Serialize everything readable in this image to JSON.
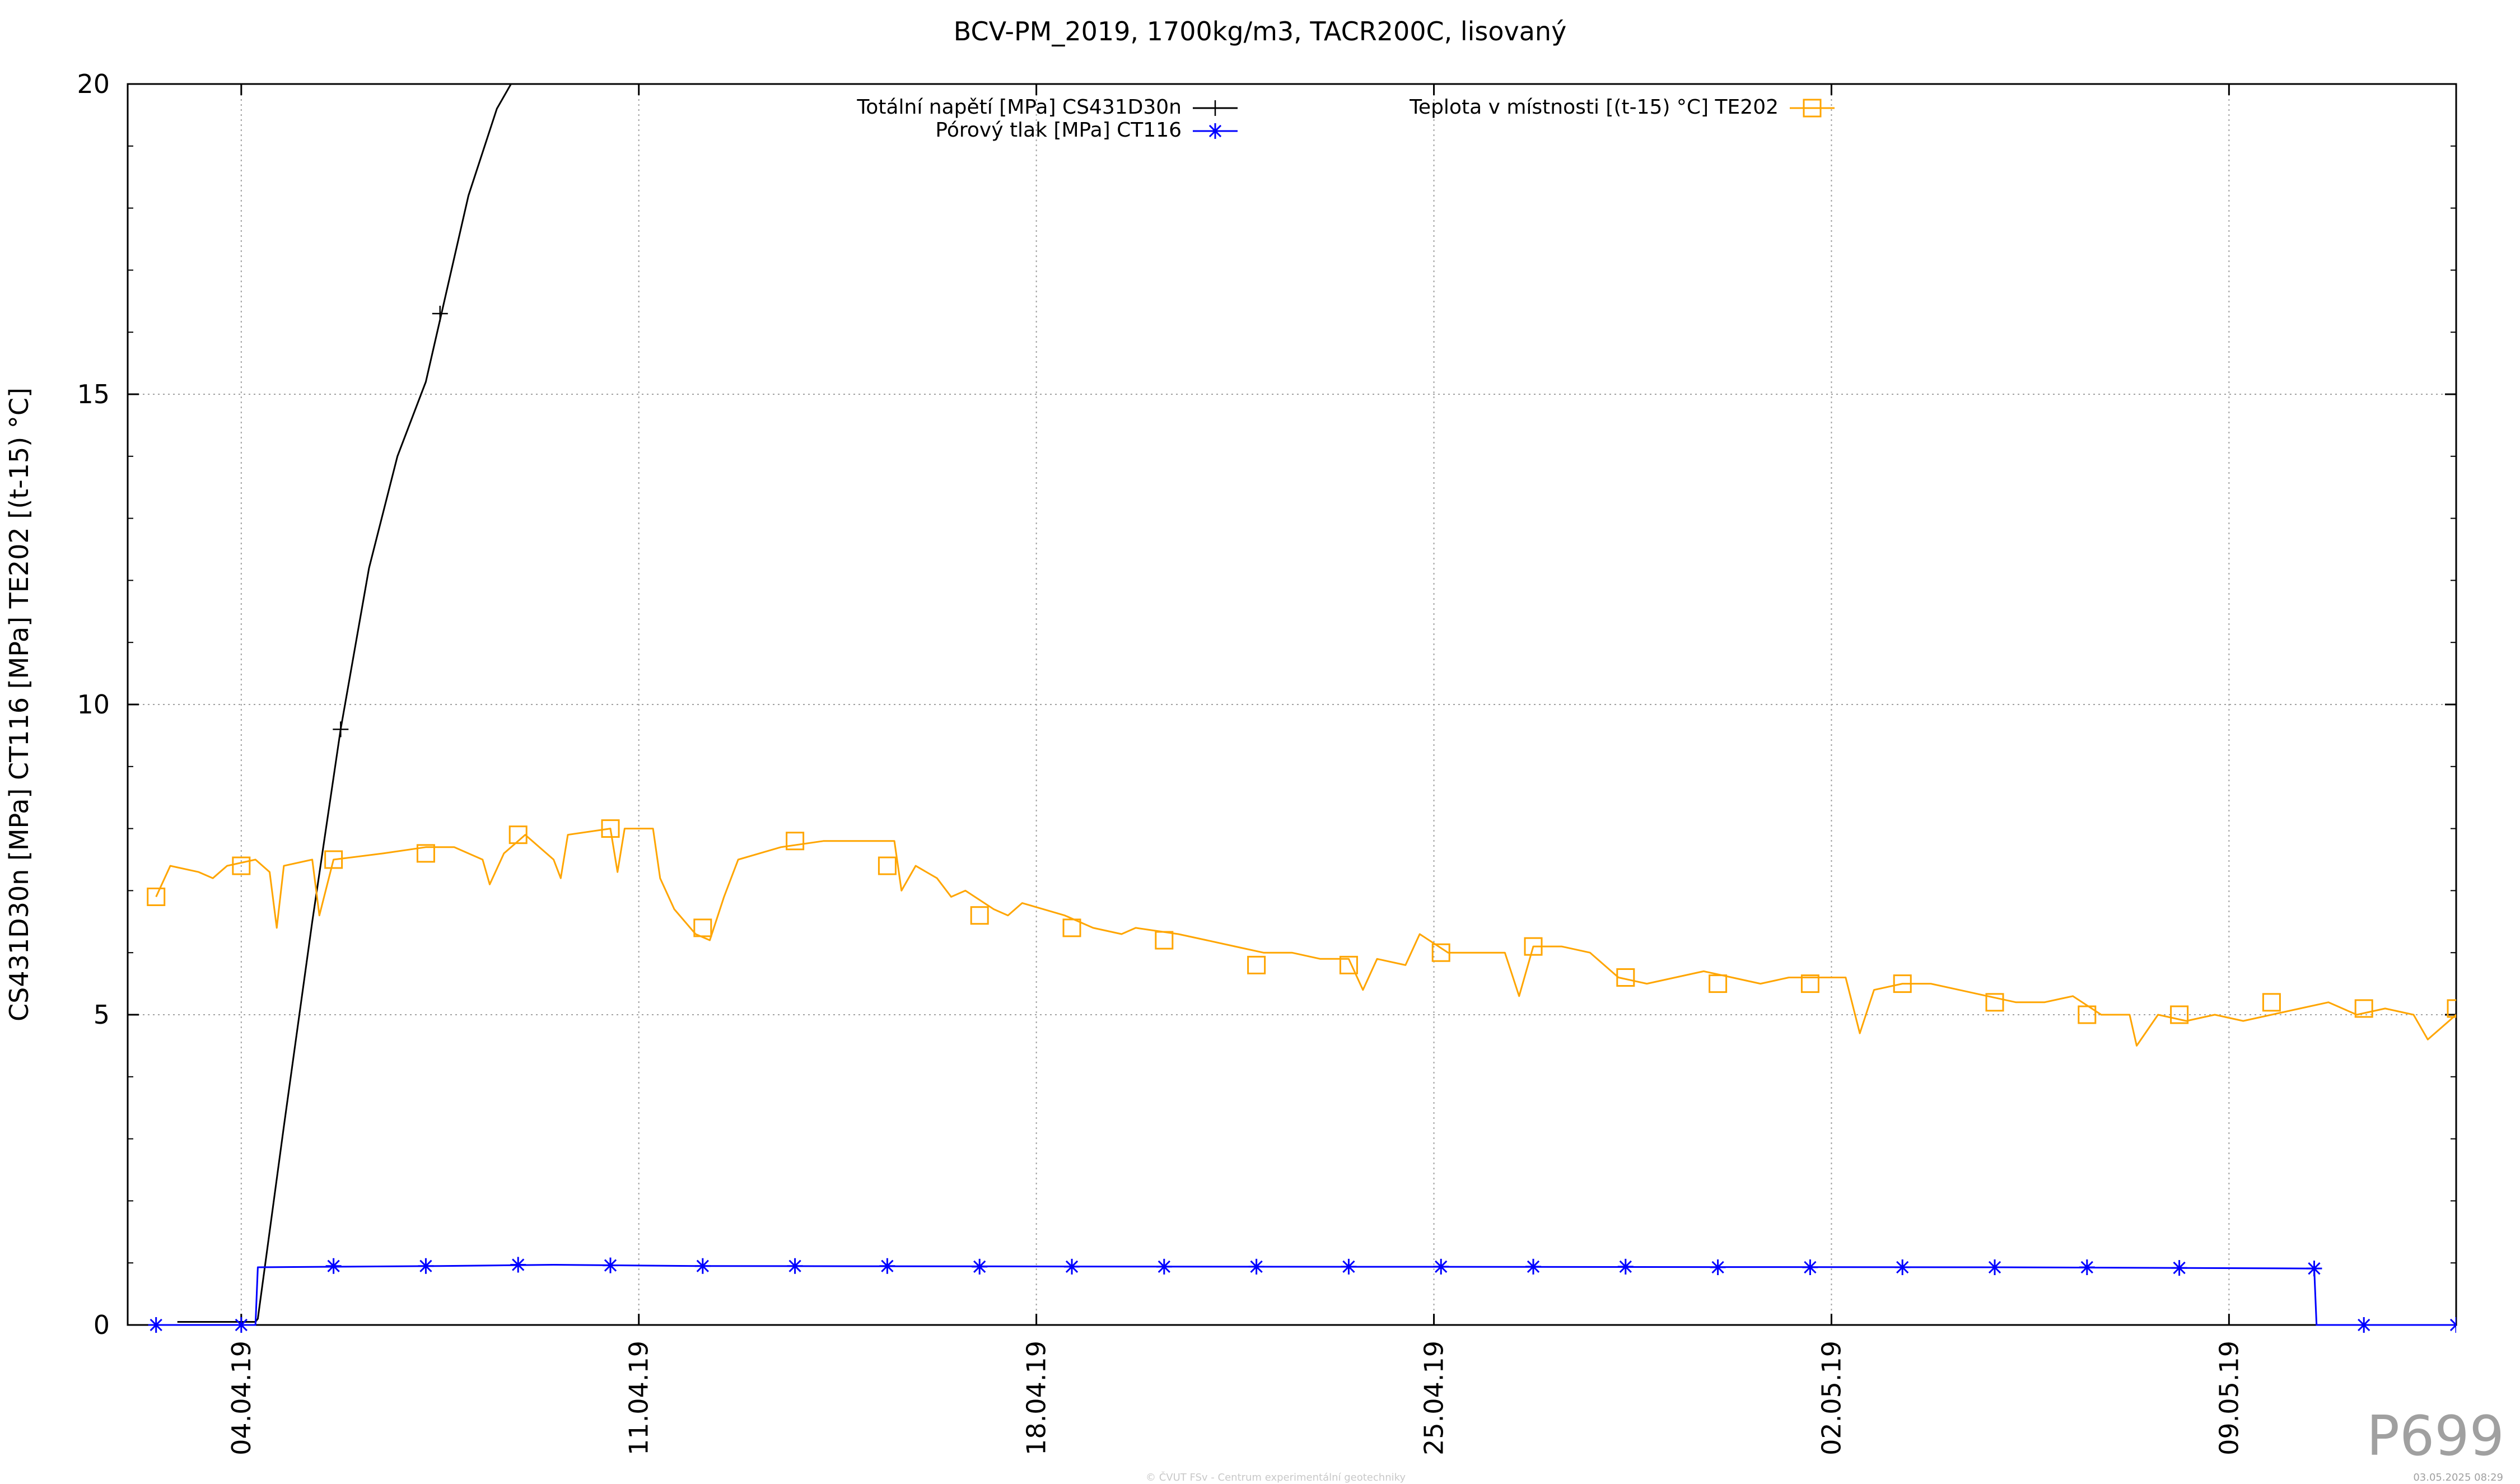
{
  "chart_data": {
    "type": "line",
    "title": "BCV-PM_2019, 1700kg/m3, TACR200C, lisovaný",
    "ylabel": "CS431D30n [MPa] CT116 [MPa] TE202 [(t-15) °C]",
    "xlabel": "",
    "ylim": [
      0,
      20
    ],
    "xlim": [
      "2019-04-02",
      "2019-05-13"
    ],
    "y_ticks": [
      "0",
      "5",
      "10",
      "15",
      "20"
    ],
    "x_ticks": [
      {
        "date": "2019-04-04",
        "label": "04.04.19"
      },
      {
        "date": "2019-04-11",
        "label": "11.04.19"
      },
      {
        "date": "2019-04-18",
        "label": "18.04.19"
      },
      {
        "date": "2019-04-25",
        "label": "25.04.19"
      },
      {
        "date": "2019-05-02",
        "label": "02.05.19"
      },
      {
        "date": "2019-05-09",
        "label": "09.05.19"
      }
    ],
    "grid": true,
    "legend_position": "top",
    "series": [
      {
        "name": "Totální napětí [MPa] CS431D30n",
        "color": "#000000",
        "marker": "plus",
        "points": [
          [
            "2019-04-02 21:00",
            0.05
          ],
          [
            "2019-04-03 12:00",
            0.05
          ],
          [
            "2019-04-04 06:00",
            0.05
          ],
          [
            "2019-04-04 07:00",
            0.1
          ],
          [
            "2019-04-04 18:00",
            3.2
          ],
          [
            "2019-04-05 06:00",
            6.5
          ],
          [
            "2019-04-05 18:00",
            9.6
          ],
          [
            "2019-04-06 06:00",
            12.2
          ],
          [
            "2019-04-06 18:00",
            14.0
          ],
          [
            "2019-04-07 06:00",
            15.2
          ],
          [
            "2019-04-07 12:00",
            16.2
          ],
          [
            "2019-04-08 00:00",
            18.2
          ],
          [
            "2019-04-08 12:00",
            19.6
          ],
          [
            "2019-04-08 18:00",
            20.0
          ]
        ],
        "marker_points": [
          [
            "2019-04-05 18:00",
            9.6
          ],
          [
            "2019-04-07 12:00",
            16.3
          ]
        ]
      },
      {
        "name": "Pórový tlak [MPa] CT116",
        "color": "#0000ff",
        "marker": "asterisk",
        "points": [
          [
            "2019-04-02 12:00",
            0.0
          ],
          [
            "2019-04-04 06:00",
            0.0
          ],
          [
            "2019-04-04 07:00",
            0.93
          ],
          [
            "2019-04-07 12:00",
            0.95
          ],
          [
            "2019-04-09 12:00",
            0.97
          ],
          [
            "2019-04-12 00:00",
            0.95
          ],
          [
            "2019-04-20 00:00",
            0.94
          ],
          [
            "2019-05-05 00:00",
            0.93
          ],
          [
            "2019-05-10 12:00",
            0.91
          ],
          [
            "2019-05-10 13:00",
            0.0
          ],
          [
            "2019-05-13 00:00",
            0.0
          ]
        ],
        "marker_points": [
          [
            "2019-04-02 12:00",
            0.0
          ],
          [
            "2019-04-04 00:00",
            0.0
          ],
          [
            "2019-04-05 15:00",
            0.95
          ],
          [
            "2019-04-07 06:00",
            0.95
          ],
          [
            "2019-04-08 21:00",
            0.97
          ],
          [
            "2019-04-10 12:00",
            0.96
          ],
          [
            "2019-04-12 03:00",
            0.95
          ],
          [
            "2019-04-13 18:00",
            0.95
          ],
          [
            "2019-04-15 09:00",
            0.95
          ],
          [
            "2019-04-17 00:00",
            0.94
          ],
          [
            "2019-04-18 15:00",
            0.94
          ],
          [
            "2019-04-20 06:00",
            0.94
          ],
          [
            "2019-04-21 21:00",
            0.94
          ],
          [
            "2019-04-23 12:00",
            0.94
          ],
          [
            "2019-04-25 03:00",
            0.94
          ],
          [
            "2019-04-26 18:00",
            0.94
          ],
          [
            "2019-04-28 09:00",
            0.94
          ],
          [
            "2019-04-30 00:00",
            0.93
          ],
          [
            "2019-05-01 15:00",
            0.93
          ],
          [
            "2019-05-03 06:00",
            0.93
          ],
          [
            "2019-05-04 21:00",
            0.93
          ],
          [
            "2019-05-06 12:00",
            0.93
          ],
          [
            "2019-05-08 03:00",
            0.92
          ],
          [
            "2019-05-10 12:00",
            0.91
          ],
          [
            "2019-05-11 09:00",
            0.0
          ],
          [
            "2019-05-13 00:00",
            0.0
          ]
        ]
      },
      {
        "name": "Teplota v místnosti [(t-15) °C] TE202",
        "color": "#ffa500",
        "marker": "square",
        "points": [
          [
            "2019-04-02 12:00",
            6.9
          ],
          [
            "2019-04-02 18:00",
            7.4
          ],
          [
            "2019-04-03 06:00",
            7.3
          ],
          [
            "2019-04-03 12:00",
            7.2
          ],
          [
            "2019-04-03 18:00",
            7.4
          ],
          [
            "2019-04-04 06:00",
            7.5
          ],
          [
            "2019-04-04 12:00",
            7.3
          ],
          [
            "2019-04-04 15:00",
            6.4
          ],
          [
            "2019-04-04 18:00",
            7.4
          ],
          [
            "2019-04-05 06:00",
            7.5
          ],
          [
            "2019-04-05 09:00",
            6.6
          ],
          [
            "2019-04-05 15:00",
            7.5
          ],
          [
            "2019-04-06 12:00",
            7.6
          ],
          [
            "2019-04-07 06:00",
            7.7
          ],
          [
            "2019-04-07 18:00",
            7.7
          ],
          [
            "2019-04-08 06:00",
            7.5
          ],
          [
            "2019-04-08 09:00",
            7.1
          ],
          [
            "2019-04-08 15:00",
            7.6
          ],
          [
            "2019-04-09 00:00",
            7.9
          ],
          [
            "2019-04-09 12:00",
            7.5
          ],
          [
            "2019-04-09 15:00",
            7.2
          ],
          [
            "2019-04-09 18:00",
            7.9
          ],
          [
            "2019-04-10 12:00",
            8.0
          ],
          [
            "2019-04-10 15:00",
            7.3
          ],
          [
            "2019-04-10 18:00",
            8.0
          ],
          [
            "2019-04-11 06:00",
            8.0
          ],
          [
            "2019-04-11 09:00",
            7.2
          ],
          [
            "2019-04-11 15:00",
            6.7
          ],
          [
            "2019-04-12 00:00",
            6.3
          ],
          [
            "2019-04-12 06:00",
            6.2
          ],
          [
            "2019-04-12 12:00",
            6.9
          ],
          [
            "2019-04-12 18:00",
            7.5
          ],
          [
            "2019-04-13 12:00",
            7.7
          ],
          [
            "2019-04-14 06:00",
            7.8
          ],
          [
            "2019-04-14 18:00",
            7.8
          ],
          [
            "2019-04-15 12:00",
            7.8
          ],
          [
            "2019-04-15 15:00",
            7.0
          ],
          [
            "2019-04-15 21:00",
            7.4
          ],
          [
            "2019-04-16 06:00",
            7.2
          ],
          [
            "2019-04-16 12:00",
            6.9
          ],
          [
            "2019-04-16 18:00",
            7.0
          ],
          [
            "2019-04-17 06:00",
            6.7
          ],
          [
            "2019-04-17 12:00",
            6.6
          ],
          [
            "2019-04-17 18:00",
            6.8
          ],
          [
            "2019-04-18 12:00",
            6.6
          ],
          [
            "2019-04-19 00:00",
            6.4
          ],
          [
            "2019-04-19 12:00",
            6.3
          ],
          [
            "2019-04-19 18:00",
            6.4
          ],
          [
            "2019-04-20 12:00",
            6.3
          ],
          [
            "2019-04-21 00:00",
            6.2
          ],
          [
            "2019-04-21 12:00",
            6.1
          ],
          [
            "2019-04-22 00:00",
            6.0
          ],
          [
            "2019-04-22 12:00",
            6.0
          ],
          [
            "2019-04-23 00:00",
            5.9
          ],
          [
            "2019-04-23 12:00",
            5.9
          ],
          [
            "2019-04-23 18:00",
            5.4
          ],
          [
            "2019-04-24 00:00",
            5.9
          ],
          [
            "2019-04-24 12:00",
            5.8
          ],
          [
            "2019-04-24 18:00",
            6.3
          ],
          [
            "2019-04-25 06:00",
            6.0
          ],
          [
            "2019-04-25 18:00",
            6.0
          ],
          [
            "2019-04-26 06:00",
            6.0
          ],
          [
            "2019-04-26 12:00",
            5.3
          ],
          [
            "2019-04-26 18:00",
            6.1
          ],
          [
            "2019-04-27 06:00",
            6.1
          ],
          [
            "2019-04-27 18:00",
            6.0
          ],
          [
            "2019-04-28 06:00",
            5.6
          ],
          [
            "2019-04-28 18:00",
            5.5
          ],
          [
            "2019-04-29 06:00",
            5.6
          ],
          [
            "2019-04-29 18:00",
            5.7
          ],
          [
            "2019-04-30 06:00",
            5.6
          ],
          [
            "2019-04-30 18:00",
            5.5
          ],
          [
            "2019-05-01 06:00",
            5.6
          ],
          [
            "2019-05-01 18:00",
            5.6
          ],
          [
            "2019-05-02 06:00",
            5.6
          ],
          [
            "2019-05-02 12:00",
            4.7
          ],
          [
            "2019-05-02 18:00",
            5.4
          ],
          [
            "2019-05-03 06:00",
            5.5
          ],
          [
            "2019-05-03 18:00",
            5.5
          ],
          [
            "2019-05-04 06:00",
            5.4
          ],
          [
            "2019-05-04 18:00",
            5.3
          ],
          [
            "2019-05-05 06:00",
            5.2
          ],
          [
            "2019-05-05 18:00",
            5.2
          ],
          [
            "2019-05-06 06:00",
            5.3
          ],
          [
            "2019-05-06 18:00",
            5.0
          ],
          [
            "2019-05-07 06:00",
            5.0
          ],
          [
            "2019-05-07 09:00",
            4.5
          ],
          [
            "2019-05-07 18:00",
            5.0
          ],
          [
            "2019-05-08 06:00",
            4.9
          ],
          [
            "2019-05-08 18:00",
            5.0
          ],
          [
            "2019-05-09 06:00",
            4.9
          ],
          [
            "2019-05-09 18:00",
            5.0
          ],
          [
            "2019-05-10 06:00",
            5.1
          ],
          [
            "2019-05-10 18:00",
            5.2
          ],
          [
            "2019-05-11 06:00",
            5.0
          ],
          [
            "2019-05-11 18:00",
            5.1
          ],
          [
            "2019-05-12 06:00",
            5.0
          ],
          [
            "2019-05-12 12:00",
            4.6
          ],
          [
            "2019-05-13 00:00",
            5.0
          ]
        ],
        "marker_points": [
          [
            "2019-04-02 12:00",
            6.9
          ],
          [
            "2019-04-04 00:00",
            7.4
          ],
          [
            "2019-04-05 15:00",
            7.5
          ],
          [
            "2019-04-07 06:00",
            7.6
          ],
          [
            "2019-04-08 21:00",
            7.9
          ],
          [
            "2019-04-10 12:00",
            8.0
          ],
          [
            "2019-04-12 03:00",
            6.4
          ],
          [
            "2019-04-13 18:00",
            7.8
          ],
          [
            "2019-04-15 09:00",
            7.4
          ],
          [
            "2019-04-17 00:00",
            6.6
          ],
          [
            "2019-04-18 15:00",
            6.4
          ],
          [
            "2019-04-20 06:00",
            6.2
          ],
          [
            "2019-04-21 21:00",
            5.8
          ],
          [
            "2019-04-23 12:00",
            5.8
          ],
          [
            "2019-04-25 03:00",
            6.0
          ],
          [
            "2019-04-26 18:00",
            6.1
          ],
          [
            "2019-04-28 09:00",
            5.6
          ],
          [
            "2019-04-30 00:00",
            5.5
          ],
          [
            "2019-05-01 15:00",
            5.5
          ],
          [
            "2019-05-03 06:00",
            5.5
          ],
          [
            "2019-05-04 21:00",
            5.2
          ],
          [
            "2019-05-06 12:00",
            5.0
          ],
          [
            "2019-05-08 03:00",
            5.0
          ],
          [
            "2019-05-09 18:00",
            5.2
          ],
          [
            "2019-05-11 09:00",
            5.1
          ],
          [
            "2019-05-13 00:00",
            5.1
          ]
        ]
      }
    ]
  },
  "corner_label": "P699",
  "footer_center": "© ČVUT FSv - Centrum experimentální geotechniky",
  "footer_right": "03.05.2025 08:29"
}
